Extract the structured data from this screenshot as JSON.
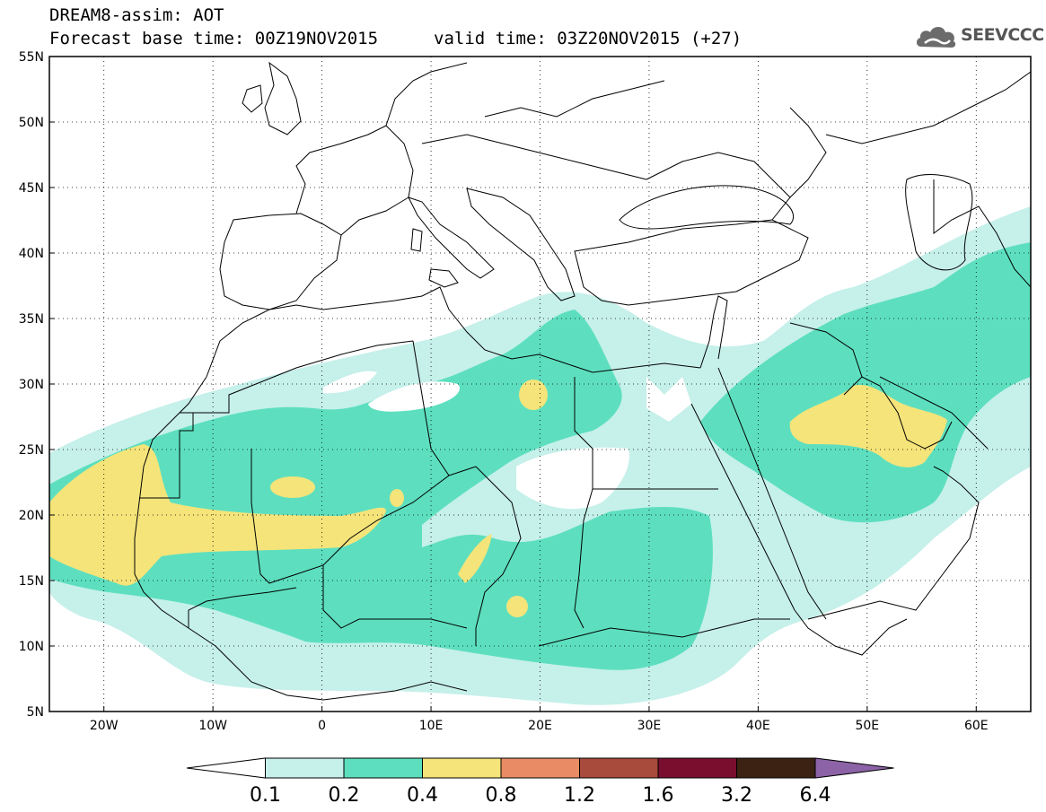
{
  "header": {
    "title": "DREAM8-assim: AOT",
    "base_time": "Forecast base time: 00Z19NOV2015",
    "valid_time": "valid time: 03Z20NOV2015 (+27)"
  },
  "logo": {
    "text": "SEEVCCC",
    "icon": "cloud-icon"
  },
  "map": {
    "lat_ticks": [
      "55N",
      "50N",
      "45N",
      "40N",
      "35N",
      "30N",
      "25N",
      "20N",
      "15N",
      "10N",
      "5N"
    ],
    "lon_ticks": [
      "20W",
      "10W",
      "0",
      "10E",
      "20E",
      "30E",
      "40E",
      "50E",
      "60E"
    ],
    "lat_range": [
      5,
      55
    ],
    "lon_range": [
      -25,
      65
    ]
  },
  "colorbar": {
    "labels": [
      "0.1",
      "0.2",
      "0.4",
      "0.8",
      "1.2",
      "1.6",
      "3.2",
      "6.4"
    ],
    "colors": [
      "#ffffff",
      "#c6f0ea",
      "#5ddfbf",
      "#f5e47a",
      "#e98c65",
      "#a84a3c",
      "#7a0e2e",
      "#3b2212",
      "#8c63a6"
    ]
  }
}
